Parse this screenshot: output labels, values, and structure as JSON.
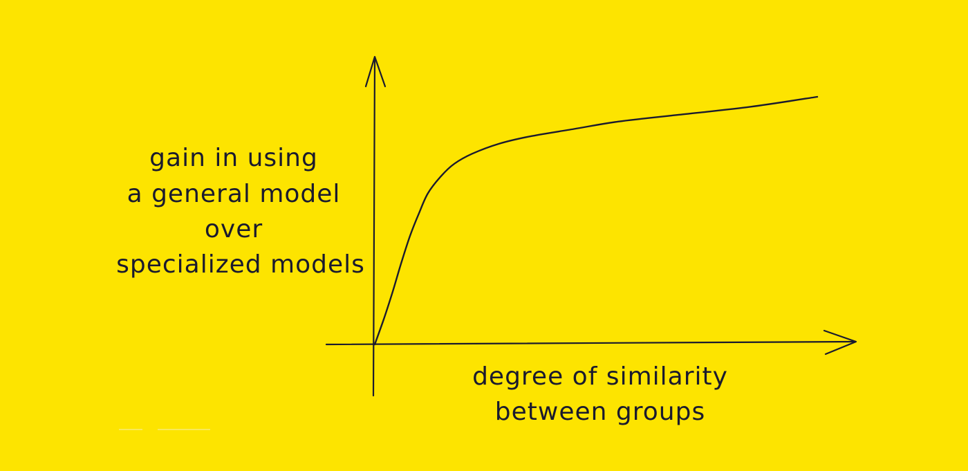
{
  "chart_data": {
    "type": "line",
    "ylabel": [
      "gain in using",
      "a general model",
      "over",
      "specialized models"
    ],
    "xlabel": [
      "degree of similarity",
      "between groups"
    ],
    "axes_arrows": true,
    "grid": false,
    "ticks": false,
    "series": [
      {
        "color": "#1a1a2e",
        "points": [
          [
            0.0,
            0.0
          ],
          [
            0.02,
            0.1
          ],
          [
            0.04,
            0.21
          ],
          [
            0.06,
            0.33
          ],
          [
            0.08,
            0.44
          ],
          [
            0.1,
            0.53
          ],
          [
            0.12,
            0.61
          ],
          [
            0.15,
            0.68
          ],
          [
            0.18,
            0.73
          ],
          [
            0.22,
            0.77
          ],
          [
            0.28,
            0.81
          ],
          [
            0.35,
            0.84
          ],
          [
            0.45,
            0.87
          ],
          [
            0.55,
            0.9
          ],
          [
            0.7,
            0.93
          ],
          [
            0.85,
            0.96
          ],
          [
            1.0,
            1.0
          ]
        ]
      }
    ]
  },
  "colors": {
    "background": "#fde400",
    "ink": "#1a1a2e"
  }
}
